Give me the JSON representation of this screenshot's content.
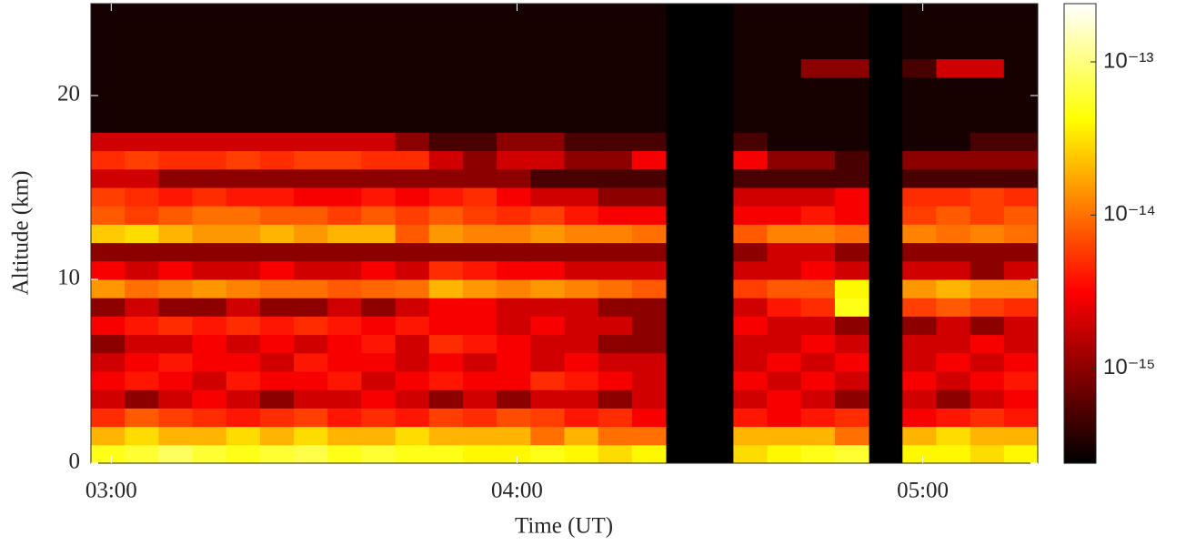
{
  "chart_data": {
    "type": "heatmap",
    "xlabel": "Time (UT)",
    "ylabel": "Altitude (km)",
    "x": [
      "02:57",
      "03:02",
      "03:07",
      "03:12",
      "03:17",
      "03:22",
      "03:27",
      "03:32",
      "03:37",
      "03:42",
      "03:47",
      "03:52",
      "03:57",
      "04:02",
      "04:07",
      "04:12",
      "04:17",
      "04:22",
      "04:27",
      "04:32",
      "04:37",
      "04:42",
      "04:47",
      "04:52",
      "04:57",
      "05:02",
      "05:07",
      "05:12"
    ],
    "xlim": [
      "02:57",
      "05:17"
    ],
    "xticks": [
      "03:00",
      "04:00",
      "05:00"
    ],
    "y": [
      0,
      1,
      2,
      3,
      4,
      5,
      6,
      7,
      8,
      9,
      10,
      11,
      12,
      13,
      14,
      15,
      16,
      17,
      18,
      19,
      20,
      21,
      22,
      23,
      24
    ],
    "ylim": [
      0,
      25
    ],
    "yticks": [
      0,
      10,
      20
    ],
    "colormap": "hot",
    "color_scale": "log",
    "clim": [
      2.4e-16,
      2.4e-13
    ],
    "cticks": [
      {
        "value": 1e-15,
        "label": "10⁻¹⁵"
      },
      {
        "value": 1e-14,
        "label": "10⁻¹⁴"
      },
      {
        "value": 1e-13,
        "label": "10⁻¹³"
      }
    ],
    "z": [
      [
        5e-14,
        6e-14,
        8e-14,
        6e-14,
        5e-14,
        6e-14,
        7e-14,
        5e-14,
        6e-14,
        5e-14,
        5e-14,
        4e-14,
        4e-14,
        5e-14,
        4e-14,
        3e-14,
        4e-14,
        null,
        null,
        3e-14,
        4e-14,
        5e-14,
        6e-14,
        null,
        4e-14,
        4e-14,
        3e-14,
        4e-14
      ],
      [
        2e-14,
        3e-14,
        2e-14,
        2e-14,
        3e-14,
        2e-14,
        3e-14,
        2e-14,
        2e-14,
        3e-14,
        2e-14,
        2e-14,
        2e-14,
        1e-14,
        2e-14,
        1e-14,
        1e-14,
        null,
        null,
        2e-14,
        2e-14,
        2e-14,
        1e-14,
        null,
        2e-14,
        3e-14,
        2e-14,
        2e-14
      ],
      [
        5e-15,
        8e-15,
        6e-15,
        5e-15,
        4e-15,
        5e-15,
        6e-15,
        4e-15,
        5e-15,
        4e-15,
        6e-15,
        5e-15,
        7e-15,
        6e-15,
        4e-15,
        5e-15,
        3e-15,
        null,
        null,
        4e-15,
        3e-15,
        4e-15,
        5e-15,
        null,
        3e-15,
        4e-15,
        5e-15,
        4e-15
      ],
      [
        2e-15,
        1e-15,
        2e-15,
        3e-15,
        2e-15,
        1e-15,
        2e-15,
        2e-15,
        3e-15,
        2e-15,
        1e-15,
        2e-15,
        1e-15,
        2e-15,
        2e-15,
        1e-15,
        2e-15,
        null,
        null,
        2e-15,
        3e-15,
        2e-15,
        1e-15,
        null,
        2e-15,
        1e-15,
        2e-15,
        3e-15
      ],
      [
        3e-15,
        4e-15,
        3e-15,
        2e-15,
        4e-15,
        3e-15,
        3e-15,
        4e-15,
        2e-15,
        3e-15,
        4e-15,
        3e-15,
        3e-15,
        5e-15,
        4e-15,
        3e-15,
        2e-15,
        null,
        null,
        3e-15,
        2e-15,
        3e-15,
        2e-15,
        null,
        3e-15,
        2e-15,
        3e-15,
        4e-15
      ],
      [
        2e-15,
        3e-15,
        4e-15,
        3e-15,
        3e-15,
        2e-15,
        4e-15,
        3e-15,
        3e-15,
        2e-15,
        3e-15,
        2e-15,
        3e-15,
        2e-15,
        3e-15,
        2e-15,
        2e-15,
        null,
        null,
        2e-15,
        3e-15,
        2e-15,
        3e-15,
        null,
        2e-15,
        3e-15,
        2e-15,
        3e-15
      ],
      [
        1e-15,
        2e-15,
        2e-15,
        3e-15,
        2e-15,
        3e-15,
        2e-15,
        3e-15,
        4e-15,
        2e-15,
        5e-15,
        4e-15,
        3e-15,
        2e-15,
        2e-15,
        1e-15,
        1e-15,
        null,
        null,
        2e-15,
        2e-15,
        3e-15,
        2e-15,
        null,
        2e-15,
        2e-15,
        3e-15,
        2e-15
      ],
      [
        3e-15,
        4e-15,
        5e-15,
        4e-15,
        5e-15,
        4e-15,
        5e-15,
        4e-15,
        3e-15,
        4e-15,
        3e-15,
        3e-15,
        2e-15,
        3e-15,
        2e-15,
        2e-15,
        1e-15,
        null,
        null,
        3e-15,
        2e-15,
        2e-15,
        1e-15,
        null,
        1e-15,
        2e-15,
        1e-15,
        2e-15
      ],
      [
        1e-15,
        2e-15,
        1e-15,
        1e-15,
        2e-15,
        1e-15,
        1e-15,
        2e-15,
        1e-15,
        2e-15,
        3e-15,
        3e-15,
        2e-15,
        2e-15,
        2e-15,
        1e-15,
        1e-15,
        null,
        null,
        2e-15,
        4e-15,
        5e-15,
        5e-14,
        null,
        6e-15,
        8e-15,
        6e-15,
        5e-15
      ],
      [
        1.5e-14,
        1e-14,
        1.2e-14,
        1.5e-14,
        1.2e-14,
        1e-14,
        1e-14,
        8e-15,
        9e-15,
        1e-14,
        2e-14,
        1.5e-14,
        1.2e-14,
        1.5e-14,
        1.2e-14,
        1e-14,
        8e-15,
        null,
        null,
        6e-15,
        8e-15,
        8e-15,
        4e-14,
        null,
        1.5e-14,
        2e-14,
        1.5e-14,
        1.5e-14
      ],
      [
        3e-15,
        2e-15,
        3e-15,
        2e-15,
        2e-15,
        3e-15,
        2e-15,
        2e-15,
        3e-15,
        2e-15,
        5e-15,
        4e-15,
        3e-15,
        3e-15,
        2e-15,
        2e-15,
        2e-15,
        null,
        null,
        2e-15,
        2e-15,
        3e-15,
        2e-15,
        null,
        2e-15,
        2e-15,
        1e-15,
        2e-15
      ],
      [
        1e-15,
        1e-15,
        1e-15,
        1e-15,
        1e-15,
        1e-15,
        1e-15,
        1e-15,
        1e-15,
        1e-15,
        1e-15,
        1e-15,
        1e-15,
        1e-15,
        1e-15,
        1e-15,
        1e-15,
        null,
        null,
        1e-15,
        2e-15,
        2e-15,
        1e-15,
        null,
        1e-15,
        1e-15,
        1e-15,
        1e-15
      ],
      [
        2.5e-14,
        3e-14,
        2e-14,
        1.5e-14,
        1.5e-14,
        2e-14,
        1.5e-14,
        2e-14,
        2e-14,
        8e-15,
        1.5e-14,
        1.2e-14,
        1.2e-14,
        1.5e-14,
        1.2e-14,
        1.2e-14,
        1e-14,
        null,
        null,
        8e-15,
        1.2e-14,
        1.2e-14,
        1e-14,
        null,
        1.2e-14,
        1e-14,
        1.2e-14,
        1e-14
      ],
      [
        8e-15,
        6e-15,
        8e-15,
        1e-14,
        1e-14,
        8e-15,
        8e-15,
        6e-15,
        8e-15,
        6e-15,
        8e-15,
        6e-15,
        5e-15,
        6e-15,
        4e-15,
        3e-15,
        3e-15,
        null,
        null,
        3e-15,
        3e-15,
        4e-15,
        3e-15,
        null,
        6e-15,
        8e-15,
        6e-15,
        8e-15
      ],
      [
        6e-15,
        5e-15,
        4e-15,
        5e-15,
        4e-15,
        4e-15,
        3e-15,
        3e-15,
        4e-15,
        3e-15,
        4e-15,
        5e-15,
        3e-15,
        2e-15,
        2e-15,
        1e-15,
        1e-15,
        null,
        null,
        2e-15,
        2e-15,
        2e-15,
        3e-15,
        null,
        5e-15,
        5e-15,
        6e-15,
        5e-15
      ],
      [
        2e-15,
        2e-15,
        1e-15,
        1e-15,
        1e-15,
        1e-15,
        1e-15,
        1e-15,
        1e-15,
        1e-15,
        1e-15,
        1e-15,
        1e-15,
        5e-16,
        5e-16,
        5e-16,
        5e-16,
        null,
        null,
        5e-16,
        5e-16,
        5e-16,
        5e-16,
        null,
        5e-16,
        5e-16,
        5e-16,
        5e-16
      ],
      [
        5e-15,
        6e-15,
        5e-15,
        5e-15,
        6e-15,
        5e-15,
        6e-15,
        6e-15,
        5e-15,
        5e-15,
        2e-15,
        1e-15,
        2e-15,
        2e-15,
        1e-15,
        1e-15,
        3e-15,
        null,
        null,
        3e-15,
        1e-15,
        1e-15,
        5e-16,
        null,
        1e-15,
        1e-15,
        1e-15,
        1e-15
      ],
      [
        2e-15,
        2e-15,
        2e-15,
        2e-15,
        2e-15,
        2e-15,
        2e-15,
        2e-15,
        2e-15,
        1e-15,
        5e-16,
        5e-16,
        1e-15,
        1e-15,
        5e-16,
        5e-16,
        5e-16,
        null,
        null,
        5e-16,
        3e-16,
        3e-16,
        3e-16,
        null,
        3e-16,
        3e-16,
        5e-16,
        5e-16
      ],
      [
        3e-16,
        3e-16,
        3e-16,
        3e-16,
        3e-16,
        3e-16,
        3e-16,
        3e-16,
        3e-16,
        3e-16,
        3e-16,
        3e-16,
        3e-16,
        3e-16,
        3e-16,
        3e-16,
        3e-16,
        null,
        null,
        3e-16,
        3e-16,
        3e-16,
        3e-16,
        null,
        3e-16,
        3e-16,
        3e-16,
        3e-16
      ],
      [
        3e-16,
        3e-16,
        3e-16,
        3e-16,
        3e-16,
        3e-16,
        3e-16,
        3e-16,
        3e-16,
        3e-16,
        3e-16,
        3e-16,
        3e-16,
        3e-16,
        3e-16,
        3e-16,
        3e-16,
        null,
        null,
        3e-16,
        3e-16,
        3e-16,
        3e-16,
        null,
        3e-16,
        3e-16,
        3e-16,
        3e-16
      ],
      [
        3e-16,
        3e-16,
        3e-16,
        3e-16,
        3e-16,
        3e-16,
        3e-16,
        3e-16,
        3e-16,
        3e-16,
        3e-16,
        3e-16,
        3e-16,
        3e-16,
        3e-16,
        3e-16,
        3e-16,
        null,
        null,
        3e-16,
        3e-16,
        3e-16,
        3e-16,
        null,
        3e-16,
        3e-16,
        3e-16,
        3e-16
      ],
      [
        3e-16,
        3e-16,
        3e-16,
        3e-16,
        3e-16,
        3e-16,
        3e-16,
        3e-16,
        3e-16,
        3e-16,
        3e-16,
        3e-16,
        3e-16,
        3e-16,
        3e-16,
        3e-16,
        3e-16,
        null,
        null,
        3e-16,
        3e-16,
        1e-15,
        1e-15,
        null,
        5e-16,
        2e-15,
        2e-15,
        3e-16
      ],
      [
        3e-16,
        3e-16,
        3e-16,
        3e-16,
        3e-16,
        3e-16,
        3e-16,
        3e-16,
        3e-16,
        3e-16,
        3e-16,
        3e-16,
        3e-16,
        3e-16,
        3e-16,
        3e-16,
        3e-16,
        null,
        null,
        3e-16,
        3e-16,
        3e-16,
        3e-16,
        null,
        3e-16,
        3e-16,
        3e-16,
        3e-16
      ],
      [
        3e-16,
        3e-16,
        3e-16,
        3e-16,
        3e-16,
        3e-16,
        3e-16,
        3e-16,
        3e-16,
        3e-16,
        3e-16,
        3e-16,
        3e-16,
        3e-16,
        3e-16,
        3e-16,
        3e-16,
        null,
        null,
        3e-16,
        3e-16,
        3e-16,
        3e-16,
        null,
        3e-16,
        3e-16,
        3e-16,
        3e-16
      ],
      [
        3e-16,
        3e-16,
        3e-16,
        3e-16,
        3e-16,
        3e-16,
        3e-16,
        3e-16,
        3e-16,
        3e-16,
        3e-16,
        3e-16,
        3e-16,
        3e-16,
        3e-16,
        3e-16,
        3e-16,
        null,
        null,
        3e-16,
        3e-16,
        3e-16,
        3e-16,
        null,
        3e-16,
        3e-16,
        3e-16,
        3e-16
      ]
    ]
  }
}
